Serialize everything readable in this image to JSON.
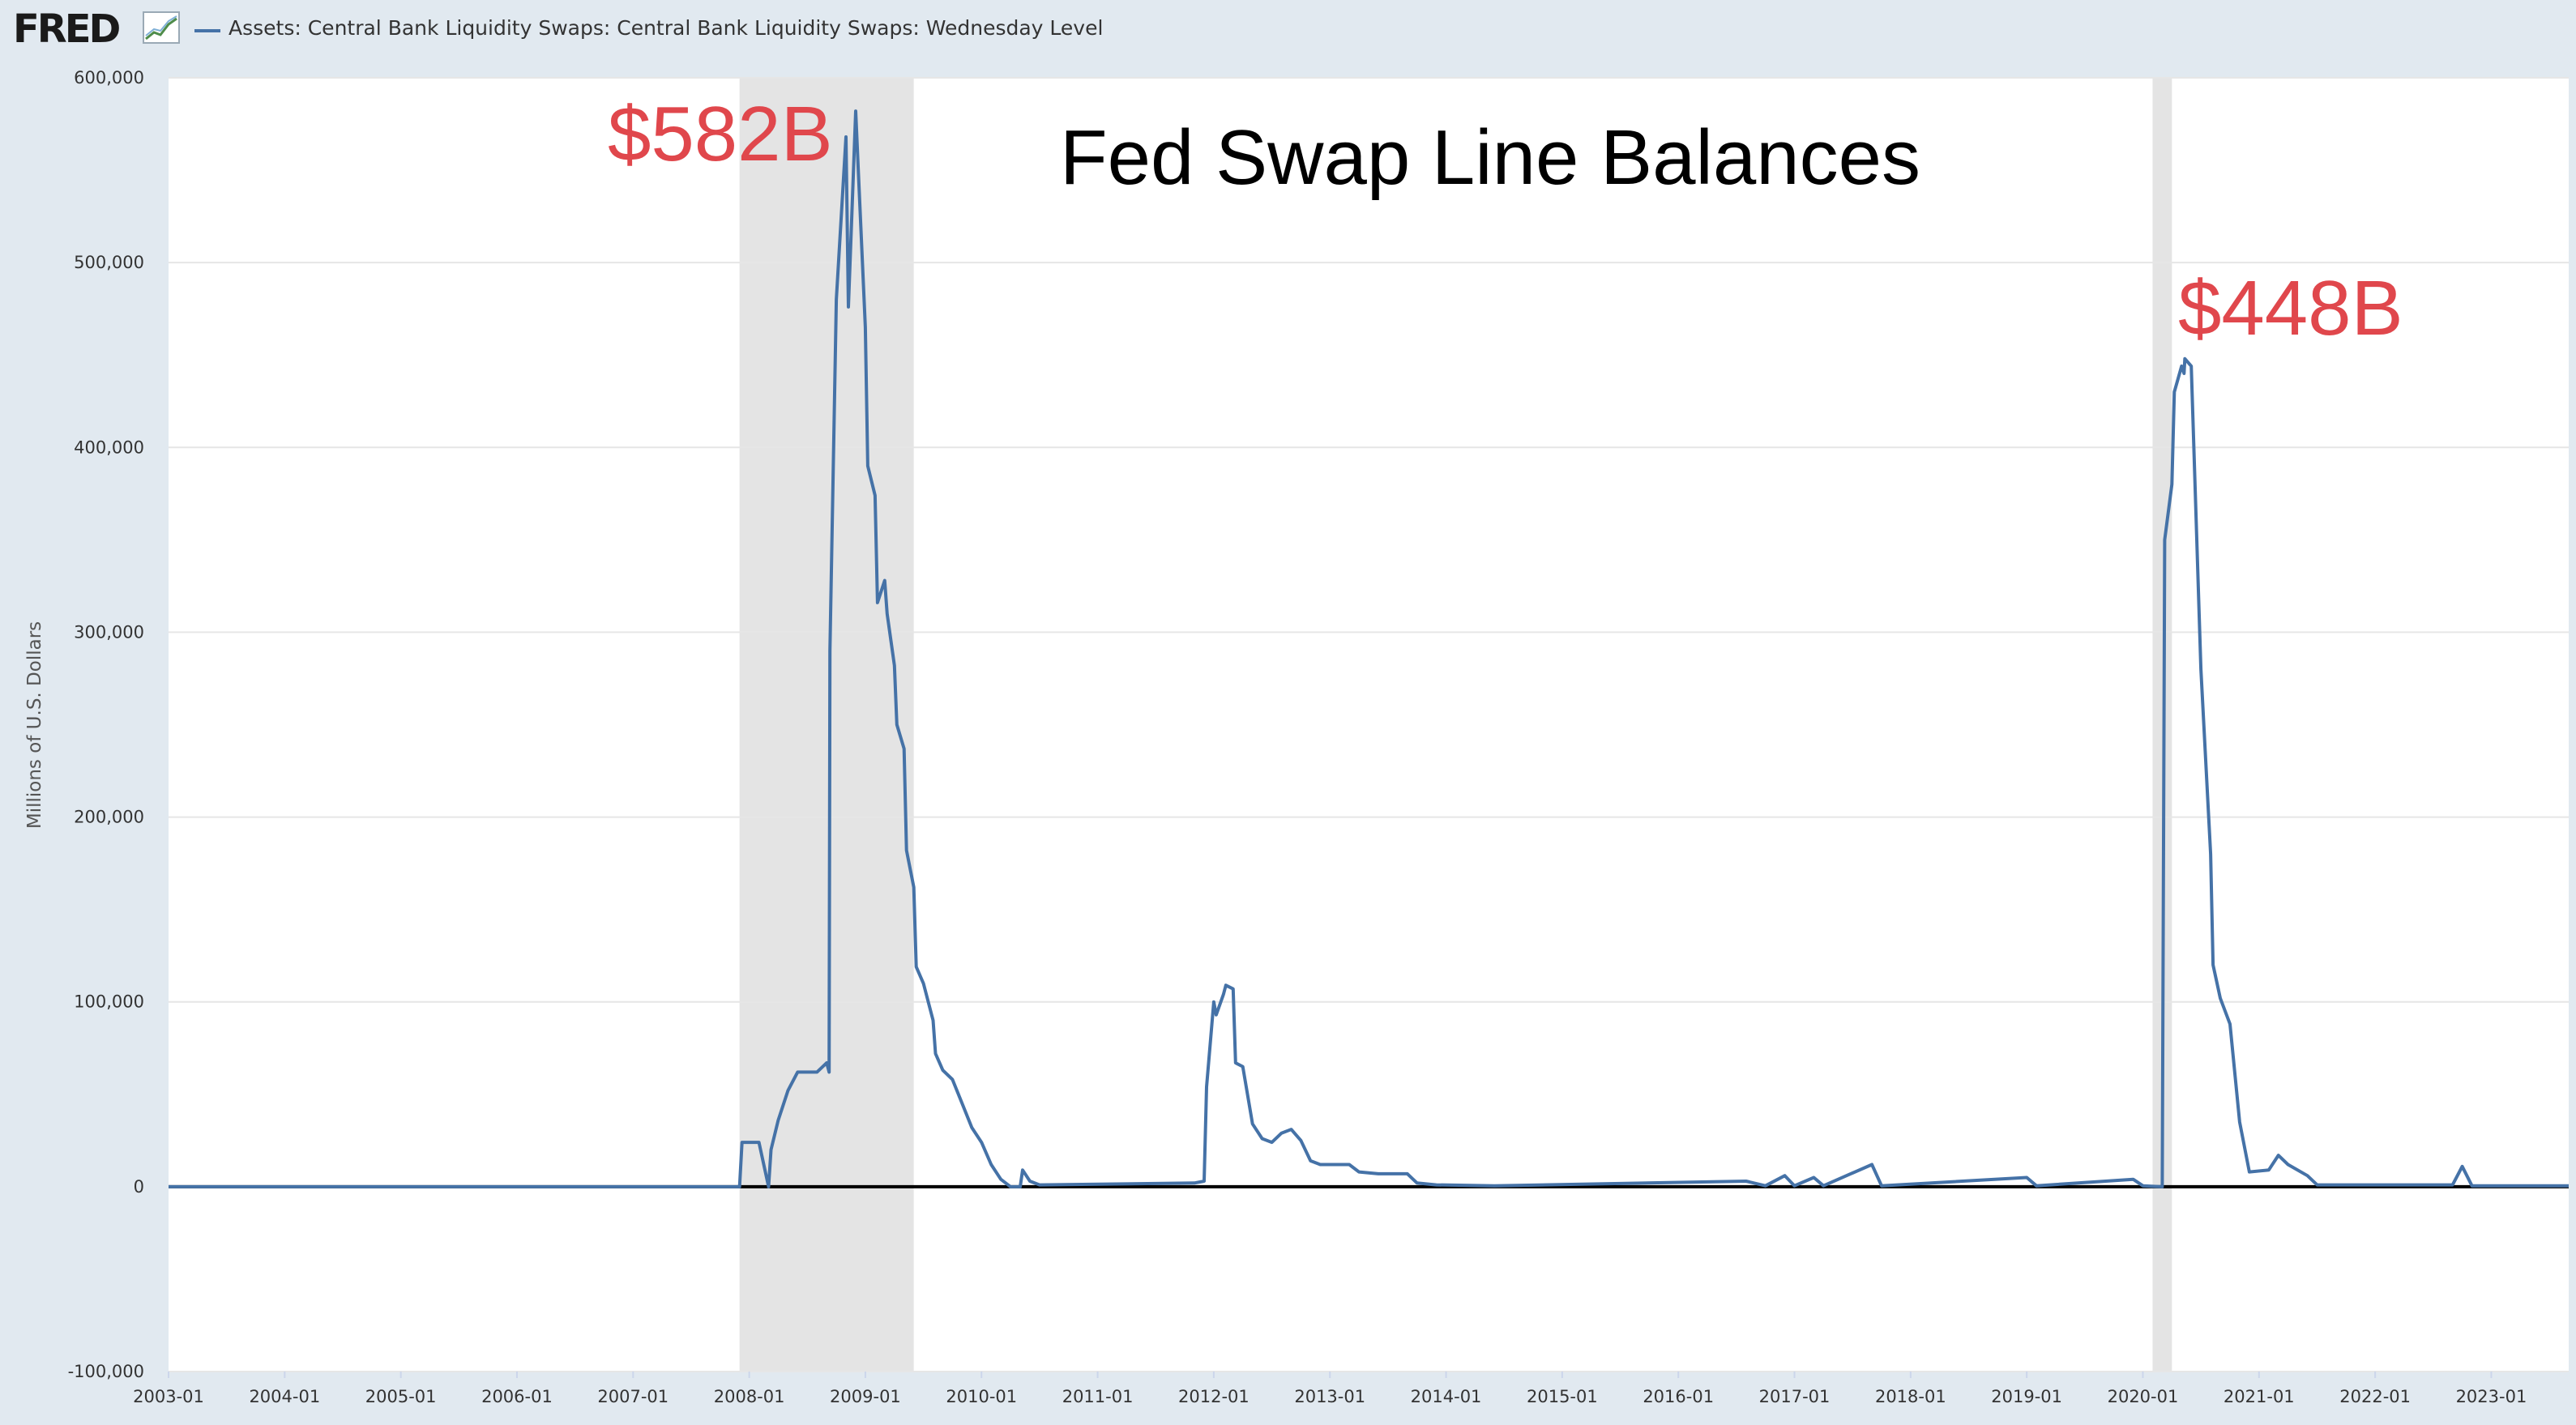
{
  "header": {
    "logo_text": "FRED",
    "logo_icon": "chart-line-icon",
    "legend_label": "Assets: Central Bank Liquidity Swaps: Central Bank Liquidity Swaps: Wednesday Level",
    "legend_color": "#4572a7"
  },
  "chart_data": {
    "type": "line",
    "title": "Fed Swap Line Balances",
    "ylabel": "Millions of U.S. Dollars",
    "xlabel": "",
    "ylim": [
      -100000,
      600000
    ],
    "xlim": [
      "2003-01",
      "2023-09"
    ],
    "yticks": [
      -100000,
      0,
      100000,
      200000,
      300000,
      400000,
      500000,
      600000
    ],
    "ytick_labels": [
      "-100,000",
      "0",
      "100,000",
      "200,000",
      "300,000",
      "400,000",
      "500,000",
      "600,000"
    ],
    "xtick_labels": [
      "2003-01",
      "2004-01",
      "2005-01",
      "2006-01",
      "2007-01",
      "2008-01",
      "2009-01",
      "2010-01",
      "2011-01",
      "2012-01",
      "2013-01",
      "2014-01",
      "2015-01",
      "2016-01",
      "2017-01",
      "2018-01",
      "2019-01",
      "2020-01",
      "2021-01",
      "2022-01",
      "2023-01"
    ],
    "recessions": [
      [
        "2007-12",
        "2009-06"
      ],
      [
        "2020-02",
        "2020-04"
      ]
    ],
    "grid": true,
    "series": [
      {
        "color": "#4572a7",
        "points": [
          [
            "2003-01",
            0
          ],
          [
            "2007-12",
            0
          ],
          [
            "2007-12",
            24000
          ],
          [
            "2008-01",
            24000
          ],
          [
            "2008-02",
            24000
          ],
          [
            "2008-03",
            0
          ],
          [
            "2008-03",
            20000
          ],
          [
            "2008-04",
            36000
          ],
          [
            "2008-05",
            52000
          ],
          [
            "2008-06",
            62000
          ],
          [
            "2008-08",
            62000
          ],
          [
            "2008-09",
            67000
          ],
          [
            "2008-09",
            62000
          ],
          [
            "2008-09",
            290000
          ],
          [
            "2008-10",
            480000
          ],
          [
            "2008-11",
            568000
          ],
          [
            "2008-11",
            476000
          ],
          [
            "2008-12",
            582000
          ],
          [
            "2008-12",
            552000
          ],
          [
            "2009-01",
            465000
          ],
          [
            "2009-01",
            390000
          ],
          [
            "2009-02",
            374000
          ],
          [
            "2009-02",
            316000
          ],
          [
            "2009-03",
            328000
          ],
          [
            "2009-03",
            310000
          ],
          [
            "2009-04",
            282000
          ],
          [
            "2009-04",
            250000
          ],
          [
            "2009-05",
            237000
          ],
          [
            "2009-05",
            182000
          ],
          [
            "2009-06",
            162000
          ],
          [
            "2009-06",
            119000
          ],
          [
            "2009-07",
            110000
          ],
          [
            "2009-08",
            90000
          ],
          [
            "2009-08",
            72000
          ],
          [
            "2009-09",
            63000
          ],
          [
            "2009-10",
            58000
          ],
          [
            "2009-11",
            45000
          ],
          [
            "2009-12",
            32000
          ],
          [
            "2010-01",
            24000
          ],
          [
            "2010-02",
            12000
          ],
          [
            "2010-03",
            4000
          ],
          [
            "2010-04",
            0
          ],
          [
            "2010-05",
            0
          ],
          [
            "2010-05",
            9000
          ],
          [
            "2010-06",
            3000
          ],
          [
            "2010-07",
            1000
          ],
          [
            "2011-11",
            2000
          ],
          [
            "2011-12",
            3000
          ],
          [
            "2011-12",
            54000
          ],
          [
            "2012-01",
            100000
          ],
          [
            "2012-01",
            93000
          ],
          [
            "2012-02",
            104000
          ],
          [
            "2012-02",
            109000
          ],
          [
            "2012-03",
            107000
          ],
          [
            "2012-03",
            67000
          ],
          [
            "2012-04",
            65000
          ],
          [
            "2012-05",
            34000
          ],
          [
            "2012-06",
            26000
          ],
          [
            "2012-07",
            24000
          ],
          [
            "2012-08",
            29000
          ],
          [
            "2012-09",
            31000
          ],
          [
            "2012-10",
            25000
          ],
          [
            "2012-11",
            14000
          ],
          [
            "2012-12",
            12000
          ],
          [
            "2013-03",
            12000
          ],
          [
            "2013-04",
            8000
          ],
          [
            "2013-06",
            7000
          ],
          [
            "2013-09",
            7000
          ],
          [
            "2013-10",
            2000
          ],
          [
            "2013-12",
            1000
          ],
          [
            "2014-06",
            500
          ],
          [
            "2016-08",
            3000
          ],
          [
            "2016-10",
            500
          ],
          [
            "2016-12",
            6000
          ],
          [
            "2017-01",
            500
          ],
          [
            "2017-03",
            5000
          ],
          [
            "2017-04",
            500
          ],
          [
            "2017-09",
            12000
          ],
          [
            "2017-10",
            500
          ],
          [
            "2019-01",
            5000
          ],
          [
            "2019-02",
            500
          ],
          [
            "2019-12",
            4000
          ],
          [
            "2020-01",
            500
          ],
          [
            "2020-03",
            0
          ],
          [
            "2020-03",
            350000
          ],
          [
            "2020-04",
            380000
          ],
          [
            "2020-04",
            430000
          ],
          [
            "2020-05",
            444000
          ],
          [
            "2020-05",
            440000
          ],
          [
            "2020-05",
            448000
          ],
          [
            "2020-06",
            444000
          ],
          [
            "2020-07",
            280000
          ],
          [
            "2020-08",
            180000
          ],
          [
            "2020-08",
            120000
          ],
          [
            "2020-09",
            102000
          ],
          [
            "2020-10",
            88000
          ],
          [
            "2020-11",
            35000
          ],
          [
            "2020-12",
            8000
          ],
          [
            "2021-02",
            9000
          ],
          [
            "2021-03",
            17000
          ],
          [
            "2021-04",
            12000
          ],
          [
            "2021-06",
            6000
          ],
          [
            "2021-07",
            1000
          ],
          [
            "2022-09",
            1000
          ],
          [
            "2022-10",
            11000
          ],
          [
            "2022-11",
            500
          ],
          [
            "2023-09",
            500
          ]
        ]
      }
    ],
    "annotations": [
      {
        "text": "$582B",
        "x": "2008-12",
        "y": 582000,
        "color": "#e0474c"
      },
      {
        "text": "$448B",
        "x": "2020-05",
        "y": 448000,
        "color": "#e0474c"
      }
    ]
  }
}
